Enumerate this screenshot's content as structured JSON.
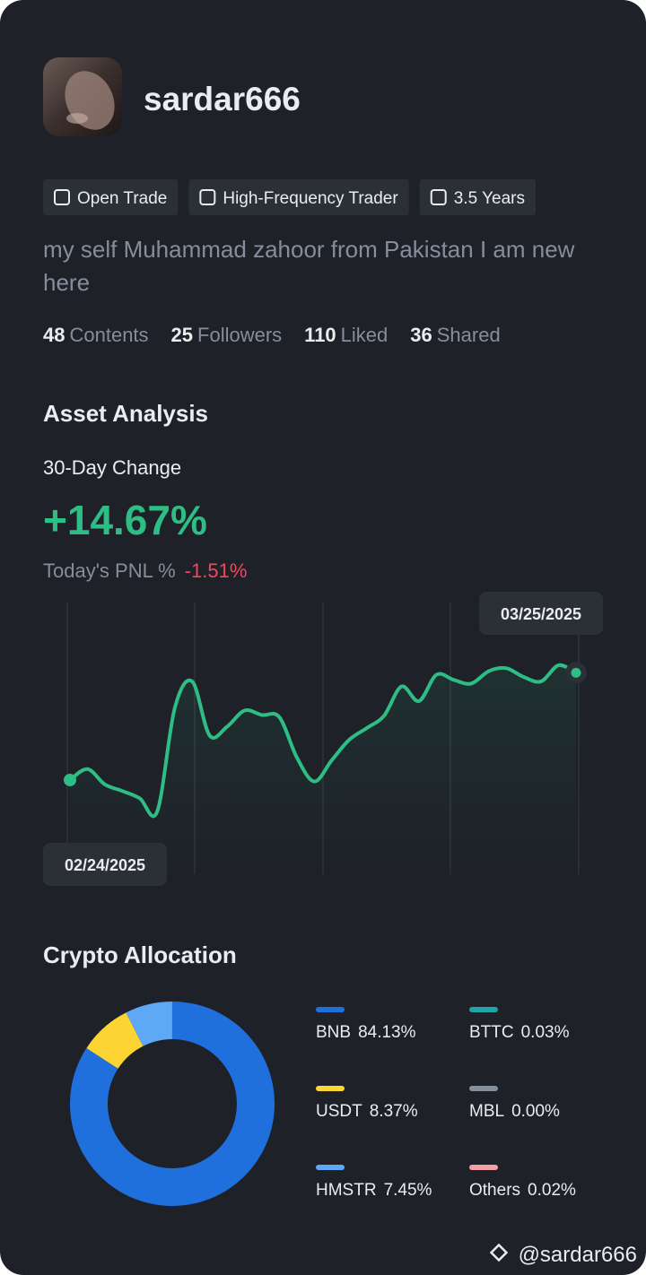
{
  "profile": {
    "username": "sardar666",
    "tags": [
      "Open Trade",
      "High-Frequency Trader",
      "3.5 Years"
    ],
    "bio": "my self Muhammad zahoor from Pakistan I am new here",
    "stats": [
      {
        "value": 48,
        "label": "Contents"
      },
      {
        "value": 25,
        "label": "Followers"
      },
      {
        "value": 110,
        "label": "Liked"
      },
      {
        "value": 36,
        "label": "Shared"
      }
    ]
  },
  "asset_analysis": {
    "title": "Asset Analysis",
    "change_label": "30-Day Change",
    "change": "+14.67%",
    "pnl_label": "Today's PNL %",
    "pnl": "-1.51%"
  },
  "crypto_allocation": {
    "title": "Crypto Allocation"
  },
  "chart_data": [
    {
      "type": "line",
      "color": "#2ebd85",
      "x": [
        "02/24/2025",
        null,
        null,
        null,
        null,
        null,
        null,
        null,
        null,
        null,
        null,
        null,
        null,
        null,
        null,
        null,
        null,
        null,
        null,
        null,
        null,
        null,
        null,
        null,
        null,
        null,
        null,
        null,
        null,
        "03/25/2025"
      ],
      "values": [
        0,
        1.5,
        -0.6,
        -1.5,
        -2.5,
        -4.3,
        9.8,
        13.5,
        6.1,
        7.3,
        9.5,
        8.9,
        8.6,
        3.1,
        -0.2,
        2.7,
        5.5,
        7.1,
        8.8,
        12.8,
        10.8,
        14.4,
        13.7,
        13.2,
        14.9,
        15.3,
        14.1,
        13.5,
        15.7,
        14.67
      ]
    },
    {
      "type": "pie",
      "series": [
        {
          "name": "BNB",
          "color": "#1f6fdc",
          "values": [
            84.13
          ],
          "value_labels": [
            "84.13%"
          ]
        },
        {
          "name": "BTTC",
          "color": "#1fa3a8",
          "values": [
            0.03
          ],
          "value_labels": [
            "0.03%"
          ]
        },
        {
          "name": "USDT",
          "color": "#fcd535",
          "values": [
            8.37
          ],
          "value_labels": [
            "8.37%"
          ]
        },
        {
          "name": "MBL",
          "color": "#848e9c",
          "values": [
            0
          ],
          "value_labels": [
            "0.00%"
          ]
        },
        {
          "name": "HMSTR",
          "color": "#5fa8f5",
          "values": [
            7.45
          ],
          "value_labels": [
            "7.45%"
          ]
        },
        {
          "name": "Others",
          "color": "#f4a0a8",
          "values": [
            0.02
          ],
          "value_labels": [
            "0.02%"
          ]
        }
      ]
    }
  ],
  "watermark": "@sardar666"
}
